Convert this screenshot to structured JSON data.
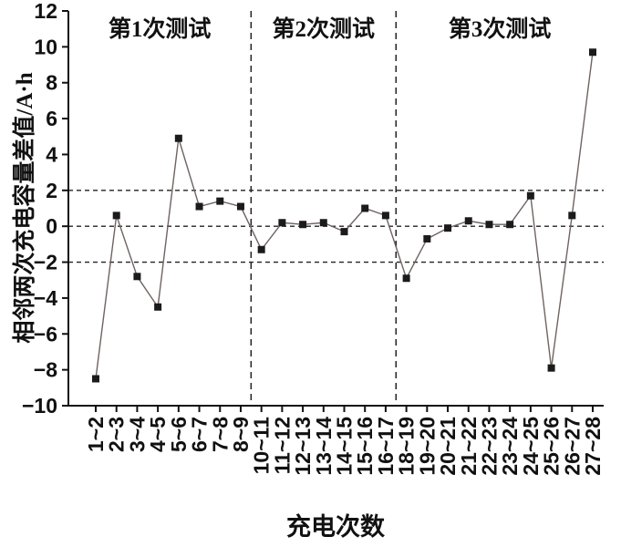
{
  "chart_data": {
    "type": "line",
    "title": "",
    "xlabel": "充电次数",
    "ylabel": "相邻两次充电容量差值/A·h",
    "categories": [
      "1~2",
      "2~3",
      "3~4",
      "4~5",
      "5~6",
      "6~7",
      "7~8",
      "8~9",
      "10~11",
      "11~12",
      "12~13",
      "13~14",
      "14~15",
      "15~16",
      "16~17",
      "18~19",
      "19~20",
      "20~21",
      "21~22",
      "22~23",
      "23~24",
      "24~25",
      "25~26",
      "26~27",
      "27~28"
    ],
    "values": [
      -8.5,
      0.6,
      -2.8,
      -4.5,
      4.9,
      1.1,
      1.4,
      1.1,
      -1.3,
      0.2,
      0.1,
      0.2,
      -0.3,
      1.0,
      0.6,
      -2.9,
      -0.7,
      -0.1,
      0.3,
      0.1,
      0.1,
      1.7,
      -7.9,
      0.6,
      9.7
    ],
    "ylim": [
      -10,
      12
    ],
    "yticks": [
      -10,
      -8,
      -6,
      -4,
      -2,
      0,
      2,
      4,
      6,
      8,
      10,
      12
    ],
    "reference_lines_y": [
      2,
      0,
      -2
    ],
    "dividers_after_index": [
      7,
      14
    ],
    "sections": [
      "第1次测试",
      "第2次测试",
      "第3次测试"
    ],
    "grid": false,
    "legend": "none",
    "line_color": "#6f6360",
    "marker_color": "#1b1b1b",
    "axis_color": "#111111",
    "reference_line_color": "#222222"
  }
}
